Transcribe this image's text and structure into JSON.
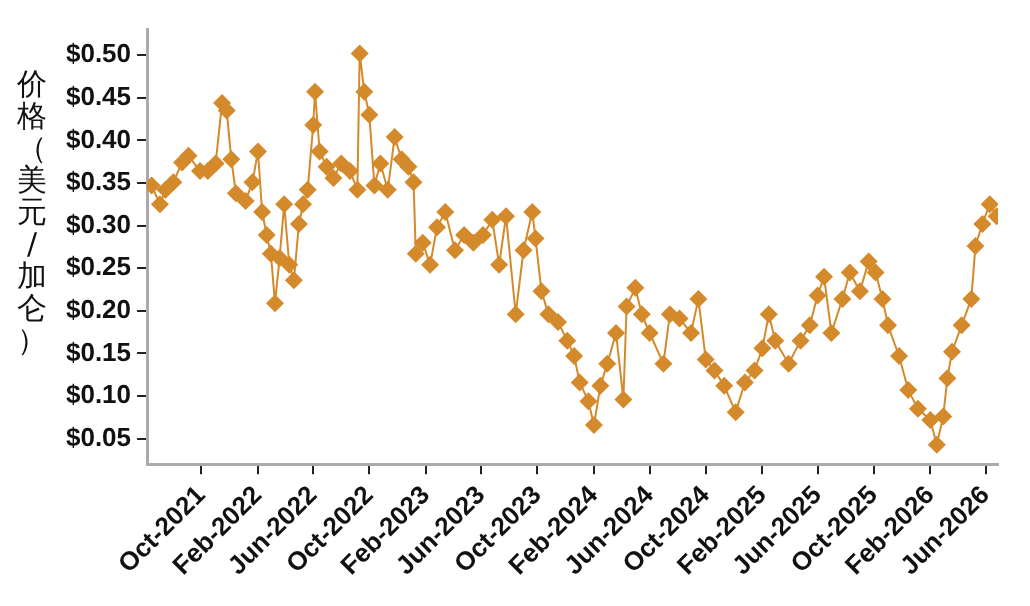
{
  "chart_data": {
    "type": "line",
    "ylabel": "价格（美元/加仑）",
    "marker": "diamond",
    "grid": false,
    "legend": false,
    "xlim": [
      "2021-06-05",
      "2026-06-28"
    ],
    "xticks": [
      {
        "value": "2021-10",
        "label": "Oct-2021"
      },
      {
        "value": "2022-02",
        "label": "Feb-2022"
      },
      {
        "value": "2022-06",
        "label": "Jun-2022"
      },
      {
        "value": "2022-10",
        "label": "Oct-2022"
      },
      {
        "value": "2023-02",
        "label": "Feb-2023"
      },
      {
        "value": "2023-06",
        "label": "Jun-2023"
      },
      {
        "value": "2023-10",
        "label": "Oct-2023"
      },
      {
        "value": "2024-02",
        "label": "Feb-2024"
      },
      {
        "value": "2024-06",
        "label": "Jun-2024"
      },
      {
        "value": "2024-10",
        "label": "Oct-2024"
      },
      {
        "value": "2025-02",
        "label": "Feb-2025"
      },
      {
        "value": "2025-06",
        "label": "Jun-2025"
      },
      {
        "value": "2025-10",
        "label": "Oct-2025"
      },
      {
        "value": "2026-02",
        "label": "Feb-2026"
      },
      {
        "value": "2026-06",
        "label": "Jun-2026"
      }
    ],
    "ylim": [
      0.02,
      0.53
    ],
    "yticks": [
      {
        "value": 0.05,
        "label": "$0.05"
      },
      {
        "value": 0.1,
        "label": "$0.10"
      },
      {
        "value": 0.15,
        "label": "$0.15"
      },
      {
        "value": 0.2,
        "label": "$0.20"
      },
      {
        "value": 0.25,
        "label": "$0.25"
      },
      {
        "value": 0.3,
        "label": "$0.30"
      },
      {
        "value": 0.35,
        "label": "$0.35"
      },
      {
        "value": 0.4,
        "label": "$0.40"
      },
      {
        "value": 0.45,
        "label": "$0.45"
      },
      {
        "value": 0.5,
        "label": "$0.50"
      }
    ],
    "series": [
      {
        "color": "#d4892a",
        "x": [
          "2021-06-15",
          "2021-07-03",
          "2021-07-15",
          "2021-08-01",
          "2021-08-20",
          "2021-09-03",
          "2021-09-28",
          "2021-10-15",
          "2021-11-01",
          "2021-11-15",
          "2021-11-25",
          "2021-12-05",
          "2021-12-15",
          "2022-01-05",
          "2022-01-20",
          "2022-02-01",
          "2022-02-10",
          "2022-02-20",
          "2022-03-01",
          "2022-03-10",
          "2022-03-20",
          "2022-03-30",
          "2022-04-10",
          "2022-04-20",
          "2022-05-01",
          "2022-05-10",
          "2022-05-20",
          "2022-06-01",
          "2022-06-05",
          "2022-06-15",
          "2022-06-30",
          "2022-07-15",
          "2022-08-01",
          "2022-08-20",
          "2022-09-05",
          "2022-09-10",
          "2022-09-20",
          "2022-10-01",
          "2022-10-12",
          "2022-10-25",
          "2022-11-10",
          "2022-11-25",
          "2022-12-10",
          "2022-12-25",
          "2023-01-05",
          "2023-01-10",
          "2023-01-25",
          "2023-02-10",
          "2023-02-25",
          "2023-03-15",
          "2023-04-05",
          "2023-04-25",
          "2023-05-15",
          "2023-06-05",
          "2023-06-25",
          "2023-07-10",
          "2023-07-25",
          "2023-08-15",
          "2023-09-01",
          "2023-09-20",
          "2023-09-27",
          "2023-10-10",
          "2023-10-25",
          "2023-11-15",
          "2023-12-05",
          "2023-12-20",
          "2024-01-01",
          "2024-01-20",
          "2024-02-01",
          "2024-02-15",
          "2024-03-01",
          "2024-03-20",
          "2024-04-05",
          "2024-04-12",
          "2024-05-01",
          "2024-05-15",
          "2024-06-01",
          "2024-07-01",
          "2024-07-15",
          "2024-08-05",
          "2024-08-30",
          "2024-09-15",
          "2024-10-01",
          "2024-10-20",
          "2024-11-10",
          "2024-12-05",
          "2024-12-25",
          "2025-01-15",
          "2025-02-01",
          "2025-02-15",
          "2025-03-01",
          "2025-03-30",
          "2025-04-25",
          "2025-05-15",
          "2025-06-01",
          "2025-06-15",
          "2025-07-01",
          "2025-07-25",
          "2025-08-10",
          "2025-09-01",
          "2025-09-20",
          "2025-10-05",
          "2025-10-20",
          "2025-11-01",
          "2025-11-25",
          "2025-12-15",
          "2026-01-05",
          "2026-02-01",
          "2026-02-15",
          "2026-03-01",
          "2026-03-10",
          "2026-03-20",
          "2026-04-10",
          "2026-05-01",
          "2026-05-10",
          "2026-05-25",
          "2026-06-10",
          "2026-06-25"
        ],
        "values": [
          0.347,
          0.325,
          0.342,
          0.351,
          0.374,
          0.382,
          0.364,
          0.364,
          0.373,
          0.444,
          0.435,
          0.378,
          0.338,
          0.329,
          0.351,
          0.387,
          0.316,
          0.289,
          0.267,
          0.209,
          0.262,
          0.325,
          0.254,
          0.236,
          0.302,
          0.325,
          0.342,
          0.418,
          0.457,
          0.387,
          0.369,
          0.356,
          0.373,
          0.364,
          0.342,
          0.502,
          0.457,
          0.43,
          0.347,
          0.373,
          0.342,
          0.404,
          0.378,
          0.369,
          0.351,
          0.267,
          0.28,
          0.254,
          0.298,
          0.316,
          0.271,
          0.289,
          0.28,
          0.289,
          0.307,
          0.254,
          0.311,
          0.196,
          0.271,
          0.316,
          0.285,
          0.223,
          0.196,
          0.187,
          0.165,
          0.147,
          0.116,
          0.094,
          0.066,
          0.112,
          0.138,
          0.174,
          0.096,
          0.205,
          0.227,
          0.196,
          0.174,
          0.138,
          0.196,
          0.191,
          0.174,
          0.214,
          0.143,
          0.13,
          0.112,
          0.081,
          0.116,
          0.13,
          0.156,
          0.196,
          0.165,
          0.138,
          0.165,
          0.183,
          0.218,
          0.24,
          0.174,
          0.214,
          0.245,
          0.223,
          0.258,
          0.245,
          0.214,
          0.183,
          0.147,
          0.107,
          0.085,
          0.072,
          0.043,
          0.076,
          0.121,
          0.152,
          0.183,
          0.214,
          0.276,
          0.302,
          0.325,
          0.311
        ]
      }
    ]
  }
}
